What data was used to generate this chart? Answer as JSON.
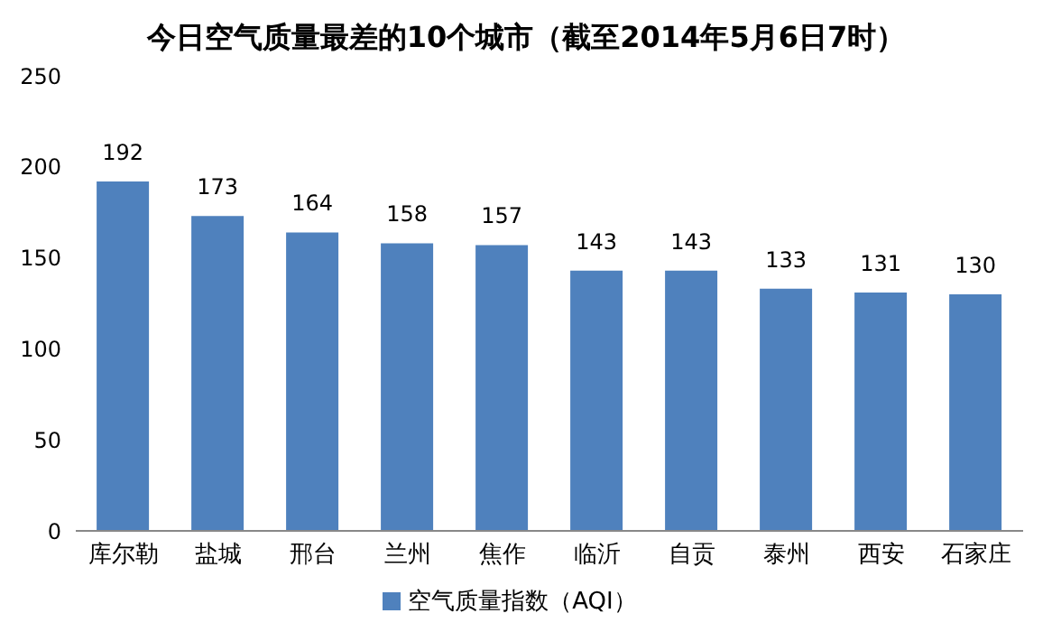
{
  "chart_data": {
    "type": "bar",
    "title": "今日空气质量最差的10个城市（截至2014年5月6日7时）",
    "categories": [
      "库尔勒",
      "盐城",
      "邢台",
      "兰州",
      "焦作",
      "临沂",
      "自贡",
      "泰州",
      "西安",
      "石家庄"
    ],
    "series": [
      {
        "name": "空气质量指数（AQI）",
        "color": "#4f81bd",
        "values": [
          192,
          173,
          164,
          158,
          157,
          143,
          143,
          133,
          131,
          130
        ]
      }
    ],
    "ylim": [
      0,
      250
    ],
    "yticks": [
      0,
      50,
      100,
      150,
      200,
      250
    ],
    "grid": false,
    "legend": "bottom",
    "data_labels": true
  }
}
